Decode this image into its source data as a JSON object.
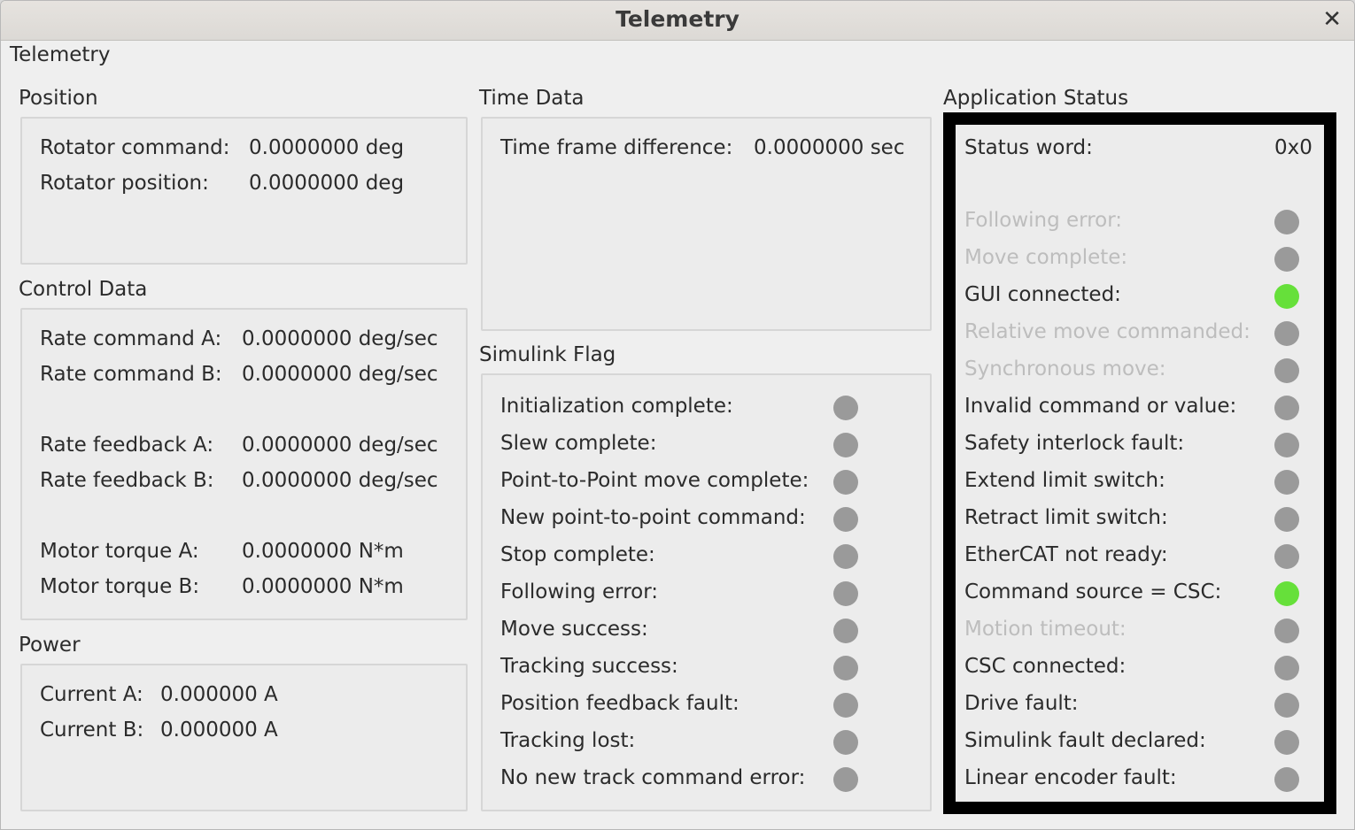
{
  "window": {
    "title": "Telemetry",
    "close_icon": "close-icon"
  },
  "tab_label": "Telemetry",
  "position": {
    "title": "Position",
    "rows": [
      {
        "label": "Rotator command:",
        "value": "0.0000000 deg"
      },
      {
        "label": "Rotator position:",
        "value": "0.0000000 deg"
      }
    ]
  },
  "control": {
    "title": "Control Data",
    "rows": [
      {
        "label": "Rate command A:",
        "value": "0.0000000 deg/sec"
      },
      {
        "label": "Rate command B:",
        "value": "0.0000000 deg/sec"
      },
      {
        "label": "Rate feedback A:",
        "value": "0.0000000 deg/sec"
      },
      {
        "label": "Rate feedback B:",
        "value": "0.0000000 deg/sec"
      },
      {
        "label": "Motor torque A:",
        "value": "0.0000000 N*m"
      },
      {
        "label": "Motor torque B:",
        "value": "0.0000000 N*m"
      }
    ]
  },
  "power": {
    "title": "Power",
    "rows": [
      {
        "label": "Current A:",
        "value": "0.000000 A"
      },
      {
        "label": "Current B:",
        "value": "0.000000 A"
      }
    ]
  },
  "time": {
    "title": "Time Data",
    "rows": [
      {
        "label": "Time frame difference:",
        "value": "0.0000000 sec"
      }
    ]
  },
  "simulink": {
    "title": "Simulink Flag",
    "flags": [
      {
        "label": "Initialization complete:",
        "state": "off"
      },
      {
        "label": "Slew complete:",
        "state": "off"
      },
      {
        "label": "Point-to-Point move complete:",
        "state": "off"
      },
      {
        "label": "New point-to-point command:",
        "state": "off"
      },
      {
        "label": "Stop complete:",
        "state": "off"
      },
      {
        "label": "Following error:",
        "state": "off"
      },
      {
        "label": "Move success:",
        "state": "off"
      },
      {
        "label": "Tracking success:",
        "state": "off"
      },
      {
        "label": "Position feedback fault:",
        "state": "off"
      },
      {
        "label": "Tracking lost:",
        "state": "off"
      },
      {
        "label": "No new track command error:",
        "state": "off"
      }
    ]
  },
  "app_status": {
    "title": "Application Status",
    "status_word_label": "Status word:",
    "status_word_value": "0x0",
    "flags": [
      {
        "label": "Following error:",
        "state": "off",
        "disabled": true
      },
      {
        "label": "Move complete:",
        "state": "off",
        "disabled": true
      },
      {
        "label": "GUI connected:",
        "state": "on",
        "disabled": false
      },
      {
        "label": "Relative move commanded:",
        "state": "off",
        "disabled": true
      },
      {
        "label": "Synchronous move:",
        "state": "off",
        "disabled": true
      },
      {
        "label": "Invalid command or value:",
        "state": "off",
        "disabled": false
      },
      {
        "label": "Safety interlock fault:",
        "state": "off",
        "disabled": false
      },
      {
        "label": "Extend limit switch:",
        "state": "off",
        "disabled": false
      },
      {
        "label": "Retract limit switch:",
        "state": "off",
        "disabled": false
      },
      {
        "label": "EtherCAT not ready:",
        "state": "off",
        "disabled": false
      },
      {
        "label": "Command source = CSC:",
        "state": "on",
        "disabled": false
      },
      {
        "label": "Motion timeout:",
        "state": "off",
        "disabled": true
      },
      {
        "label": "CSC connected:",
        "state": "off",
        "disabled": false
      },
      {
        "label": "Drive fault:",
        "state": "off",
        "disabled": false
      },
      {
        "label": "Simulink fault declared:",
        "state": "off",
        "disabled": false
      },
      {
        "label": "Linear encoder fault:",
        "state": "off",
        "disabled": false
      }
    ]
  },
  "colors": {
    "on": "#66e03a",
    "off": "#9a9a9a",
    "highlight_frame": "#000000"
  }
}
